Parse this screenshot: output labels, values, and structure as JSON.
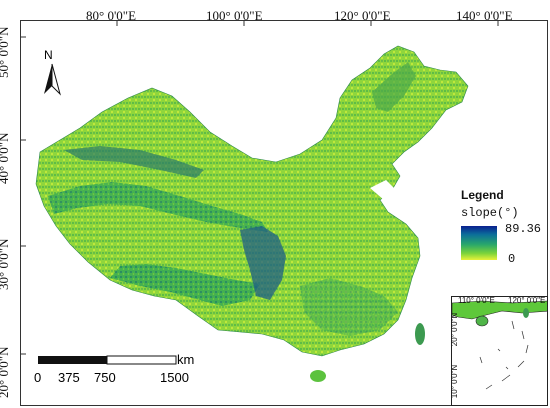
{
  "graticule": {
    "lon_labels": [
      "80° 0'0\"E",
      "100° 0'0\"E",
      "120° 0'0\"E",
      "140° 0'0\"E"
    ],
    "lat_labels": [
      "50° 0'0\"N",
      "40° 0'0\"N",
      "30° 0'0\"N",
      "20° 0'0\"N"
    ]
  },
  "north_arrow": {
    "label": "N"
  },
  "legend": {
    "title": "Legend",
    "subtitle": "slope(°)",
    "max": "89.36",
    "min": "0",
    "colors": {
      "high": "#0a1f8f",
      "mid": "#2aa86a",
      "low": "#e8f23a"
    }
  },
  "scale_bar": {
    "ticks": [
      "0",
      "375",
      "750",
      "1500"
    ],
    "unit": "km"
  },
  "inset": {
    "lon_labels": [
      "110° 0'0\"E",
      "120° 0'0\"E"
    ],
    "lat_labels": [
      "20° 0'0\"N",
      "10° 0'0\"N"
    ]
  },
  "colors": {
    "land_light": "#b6e63a",
    "land_mid": "#5ec83a",
    "land_dark": "#1f7f5a",
    "mountain": "#123f8a"
  }
}
